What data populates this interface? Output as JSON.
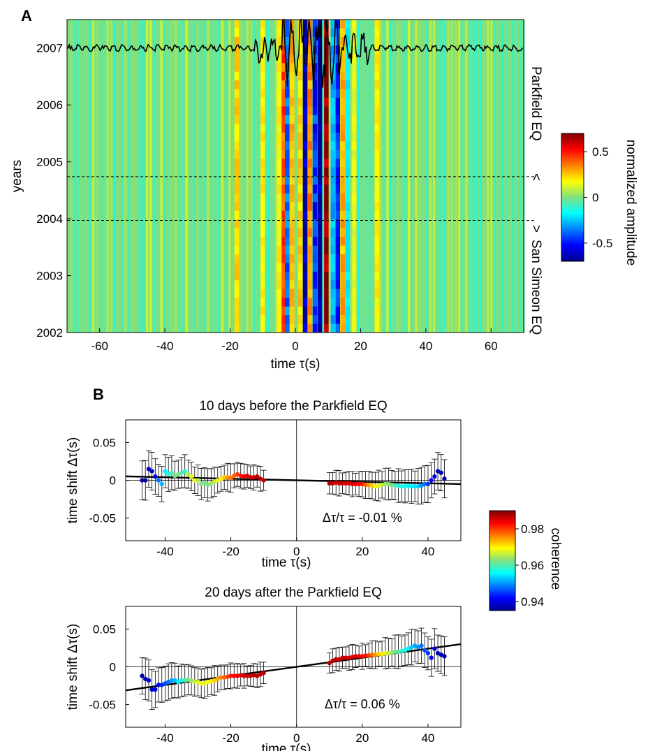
{
  "panels": {
    "a": {
      "letter": "A",
      "xlabel": "time  τ(s)",
      "ylabel": "years",
      "xticks": [
        -60,
        -40,
        -20,
        0,
        20,
        40,
        60
      ],
      "yticks": [
        2002,
        2003,
        2004,
        2005,
        2006,
        2007
      ],
      "xlim": [
        -70,
        70
      ],
      "ylim": [
        2002,
        2007.5
      ],
      "event_parkfield": {
        "label": "Parkfield EQ",
        "year": 2004.74,
        "marker": "<"
      },
      "event_sansimeon": {
        "label": "San Simeon EQ",
        "year": 2003.97,
        "marker": ">"
      },
      "colorbar": {
        "label": "normalized amplitude",
        "ticks": [
          "0.5",
          "0",
          "-0.5"
        ],
        "tick_values": [
          0.5,
          0,
          -0.5
        ],
        "range": [
          -0.7,
          0.7
        ]
      }
    },
    "b": {
      "letter": "B",
      "colorbar": {
        "label": "coherence",
        "ticks": [
          "0.98",
          "0.96",
          "0.94"
        ],
        "tick_values": [
          0.98,
          0.96,
          0.94
        ],
        "range": [
          0.935,
          0.99
        ]
      }
    }
  },
  "chart_data": [
    {
      "type": "heatmap",
      "xlabel": "time  τ(s)",
      "ylabel": "years",
      "xlim": [
        -70,
        70
      ],
      "ylim": [
        2002,
        2007.5
      ],
      "colorbar_label": "normalized amplitude",
      "colorbar_range": [
        -0.7,
        0.7
      ],
      "bands": [
        {
          "tau": -5,
          "amp": 0.2
        },
        {
          "tau": -3.5,
          "amp": 0.45
        },
        {
          "tau": -2.5,
          "amp": -0.4
        },
        {
          "tau": -1,
          "amp": 0.3
        },
        {
          "tau": 1.5,
          "amp": 0.25
        },
        {
          "tau": 3,
          "amp": -0.75
        },
        {
          "tau": 4.5,
          "amp": 0.35
        },
        {
          "tau": 6,
          "amp": -0.5
        },
        {
          "tau": 7.5,
          "amp": -0.8
        },
        {
          "tau": 9.5,
          "amp": 0.8
        },
        {
          "tau": 11.5,
          "amp": -0.3
        },
        {
          "tau": 13,
          "amp": -0.5
        },
        {
          "tau": 14.5,
          "amp": 0.3
        },
        {
          "tau": 16,
          "amp": -0.2
        },
        {
          "tau": 18,
          "amp": 0.15
        },
        {
          "tau": 25,
          "amp": 0.2
        },
        {
          "tau": -18,
          "amp": 0.25
        },
        {
          "tau": -10,
          "amp": 0.2
        }
      ],
      "horizontal_lines": [
        2004.74,
        2003.97
      ],
      "trace_baseline_year": 2007.0
    },
    {
      "type": "scatter",
      "title": "10 days before the Parkfield EQ",
      "xlabel": "time  τ(s)",
      "ylabel": "time shift Δτ(s)",
      "xlim": [
        -52,
        50
      ],
      "ylim": [
        -0.08,
        0.08
      ],
      "xticks": [
        -40,
        -20,
        0,
        20,
        40
      ],
      "yticks": [
        -0.05,
        0,
        0.05
      ],
      "ytick_labels": [
        "-0.05",
        "0",
        "0.05"
      ],
      "annotation": "Δτ/τ  = -0.01 %",
      "fit_slope": -0.0001,
      "points": [
        [
          -47,
          0.0,
          0.936
        ],
        [
          -46,
          0.0,
          0.936
        ],
        [
          -45,
          0.015,
          0.938
        ],
        [
          -44,
          0.012,
          0.938
        ],
        [
          -43,
          0.005,
          0.94
        ],
        [
          -42,
          0.0,
          0.948
        ],
        [
          -41,
          -0.005,
          0.952
        ],
        [
          -40,
          0.012,
          0.955
        ],
        [
          -39,
          0.008,
          0.957
        ],
        [
          -38,
          0.01,
          0.96
        ],
        [
          -37,
          0.006,
          0.962
        ],
        [
          -36,
          0.008,
          0.962
        ],
        [
          -35,
          0.01,
          0.96
        ],
        [
          -34,
          0.012,
          0.958
        ],
        [
          -33,
          0.008,
          0.965
        ],
        [
          -32,
          0.005,
          0.968
        ],
        [
          -31,
          0.0,
          0.97
        ],
        [
          -30,
          0.0,
          0.965
        ],
        [
          -29,
          -0.005,
          0.963
        ],
        [
          -28,
          -0.003,
          0.962
        ],
        [
          -27,
          -0.006,
          0.962
        ],
        [
          -26,
          -0.004,
          0.964
        ],
        [
          -25,
          -0.002,
          0.966
        ],
        [
          -24,
          0.0,
          0.968
        ],
        [
          -23,
          0.002,
          0.97
        ],
        [
          -22,
          0.004,
          0.972
        ],
        [
          -21,
          0.004,
          0.975
        ],
        [
          -20,
          0.003,
          0.977
        ],
        [
          -19,
          0.006,
          0.978
        ],
        [
          -18,
          0.008,
          0.98
        ],
        [
          -17,
          0.006,
          0.982
        ],
        [
          -16,
          0.005,
          0.984
        ],
        [
          -15,
          0.006,
          0.985
        ],
        [
          -14,
          0.004,
          0.986
        ],
        [
          -13,
          0.004,
          0.986
        ],
        [
          -12,
          0.005,
          0.987
        ],
        [
          -11,
          0.002,
          0.987
        ],
        [
          -10,
          0.0,
          0.987
        ],
        [
          10,
          -0.004,
          0.987
        ],
        [
          11,
          -0.004,
          0.987
        ],
        [
          12,
          -0.003,
          0.986
        ],
        [
          13,
          -0.004,
          0.986
        ],
        [
          14,
          -0.004,
          0.986
        ],
        [
          15,
          -0.004,
          0.985
        ],
        [
          16,
          -0.004,
          0.985
        ],
        [
          17,
          -0.005,
          0.985
        ],
        [
          18,
          -0.005,
          0.984
        ],
        [
          19,
          -0.005,
          0.983
        ],
        [
          20,
          -0.005,
          0.982
        ],
        [
          21,
          -0.006,
          0.978
        ],
        [
          22,
          -0.006,
          0.975
        ],
        [
          23,
          -0.007,
          0.972
        ],
        [
          24,
          -0.008,
          0.97
        ],
        [
          25,
          -0.007,
          0.968
        ],
        [
          26,
          -0.006,
          0.966
        ],
        [
          27,
          -0.005,
          0.964
        ],
        [
          28,
          -0.005,
          0.963
        ],
        [
          29,
          -0.006,
          0.962
        ],
        [
          30,
          -0.007,
          0.96
        ],
        [
          31,
          -0.007,
          0.958
        ],
        [
          32,
          -0.008,
          0.957
        ],
        [
          33,
          -0.008,
          0.957
        ],
        [
          34,
          -0.007,
          0.955
        ],
        [
          35,
          -0.008,
          0.955
        ],
        [
          36,
          -0.008,
          0.954
        ],
        [
          37,
          -0.008,
          0.953
        ],
        [
          38,
          -0.007,
          0.95
        ],
        [
          39,
          -0.005,
          0.948
        ],
        [
          40,
          -0.005,
          0.945
        ],
        [
          41,
          0.0,
          0.942
        ],
        [
          42,
          0.005,
          0.94
        ],
        [
          43,
          0.012,
          0.938
        ],
        [
          44,
          0.01,
          0.937
        ],
        [
          45,
          0.002,
          0.936
        ]
      ]
    },
    {
      "type": "scatter",
      "title": "20 days after the Parkfield EQ",
      "xlabel": "time  τ(s)",
      "ylabel": "time shift Δτ(s)",
      "xlim": [
        -52,
        50
      ],
      "ylim": [
        -0.08,
        0.08
      ],
      "xticks": [
        -40,
        -20,
        0,
        20,
        40
      ],
      "yticks": [
        -0.05,
        0,
        0.05
      ],
      "ytick_labels": [
        "-0.05",
        "0",
        "0.05"
      ],
      "annotation": "Δτ/τ  = 0.06 %",
      "fit_slope": 0.0006,
      "points": [
        [
          -47,
          -0.012,
          0.936
        ],
        [
          -46,
          -0.016,
          0.937
        ],
        [
          -45,
          -0.018,
          0.938
        ],
        [
          -44,
          -0.03,
          0.939
        ],
        [
          -43,
          -0.03,
          0.94
        ],
        [
          -42,
          -0.024,
          0.942
        ],
        [
          -41,
          -0.024,
          0.944
        ],
        [
          -40,
          -0.022,
          0.946
        ],
        [
          -39,
          -0.02,
          0.948
        ],
        [
          -38,
          -0.018,
          0.95
        ],
        [
          -37,
          -0.018,
          0.952
        ],
        [
          -36,
          -0.02,
          0.955
        ],
        [
          -35,
          -0.018,
          0.957
        ],
        [
          -34,
          -0.018,
          0.96
        ],
        [
          -33,
          -0.017,
          0.962
        ],
        [
          -32,
          -0.018,
          0.964
        ],
        [
          -31,
          -0.02,
          0.966
        ],
        [
          -30,
          -0.02,
          0.968
        ],
        [
          -29,
          -0.022,
          0.968
        ],
        [
          -28,
          -0.022,
          0.968
        ],
        [
          -27,
          -0.02,
          0.969
        ],
        [
          -26,
          -0.019,
          0.97
        ],
        [
          -25,
          -0.018,
          0.972
        ],
        [
          -24,
          -0.016,
          0.974
        ],
        [
          -23,
          -0.014,
          0.976
        ],
        [
          -22,
          -0.014,
          0.978
        ],
        [
          -21,
          -0.013,
          0.98
        ],
        [
          -20,
          -0.012,
          0.982
        ],
        [
          -19,
          -0.012,
          0.983
        ],
        [
          -18,
          -0.012,
          0.984
        ],
        [
          -17,
          -0.011,
          0.985
        ],
        [
          -16,
          -0.012,
          0.986
        ],
        [
          -15,
          -0.012,
          0.986
        ],
        [
          -14,
          -0.012,
          0.986
        ],
        [
          -13,
          -0.011,
          0.987
        ],
        [
          -12,
          -0.012,
          0.987
        ],
        [
          -11,
          -0.01,
          0.987
        ],
        [
          -10,
          -0.008,
          0.987
        ],
        [
          10,
          0.005,
          0.987
        ],
        [
          11,
          0.008,
          0.987
        ],
        [
          12,
          0.01,
          0.987
        ],
        [
          13,
          0.01,
          0.986
        ],
        [
          14,
          0.012,
          0.986
        ],
        [
          15,
          0.012,
          0.986
        ],
        [
          16,
          0.012,
          0.985
        ],
        [
          17,
          0.013,
          0.985
        ],
        [
          18,
          0.014,
          0.985
        ],
        [
          19,
          0.014,
          0.984
        ],
        [
          20,
          0.014,
          0.983
        ],
        [
          21,
          0.015,
          0.982
        ],
        [
          22,
          0.015,
          0.98
        ],
        [
          23,
          0.016,
          0.977
        ],
        [
          24,
          0.016,
          0.975
        ],
        [
          25,
          0.017,
          0.972
        ],
        [
          26,
          0.017,
          0.97
        ],
        [
          27,
          0.018,
          0.968
        ],
        [
          28,
          0.018,
          0.966
        ],
        [
          29,
          0.019,
          0.964
        ],
        [
          30,
          0.02,
          0.962
        ],
        [
          31,
          0.02,
          0.96
        ],
        [
          32,
          0.021,
          0.958
        ],
        [
          33,
          0.022,
          0.957
        ],
        [
          34,
          0.024,
          0.955
        ],
        [
          35,
          0.026,
          0.953
        ],
        [
          36,
          0.028,
          0.951
        ],
        [
          37,
          0.026,
          0.95
        ],
        [
          38,
          0.028,
          0.948
        ],
        [
          39,
          0.022,
          0.946
        ],
        [
          40,
          0.018,
          0.945
        ],
        [
          41,
          0.012,
          0.942
        ],
        [
          42,
          0.024,
          0.94
        ],
        [
          43,
          0.018,
          0.938
        ],
        [
          44,
          0.016,
          0.937
        ],
        [
          45,
          0.014,
          0.936
        ]
      ]
    }
  ]
}
